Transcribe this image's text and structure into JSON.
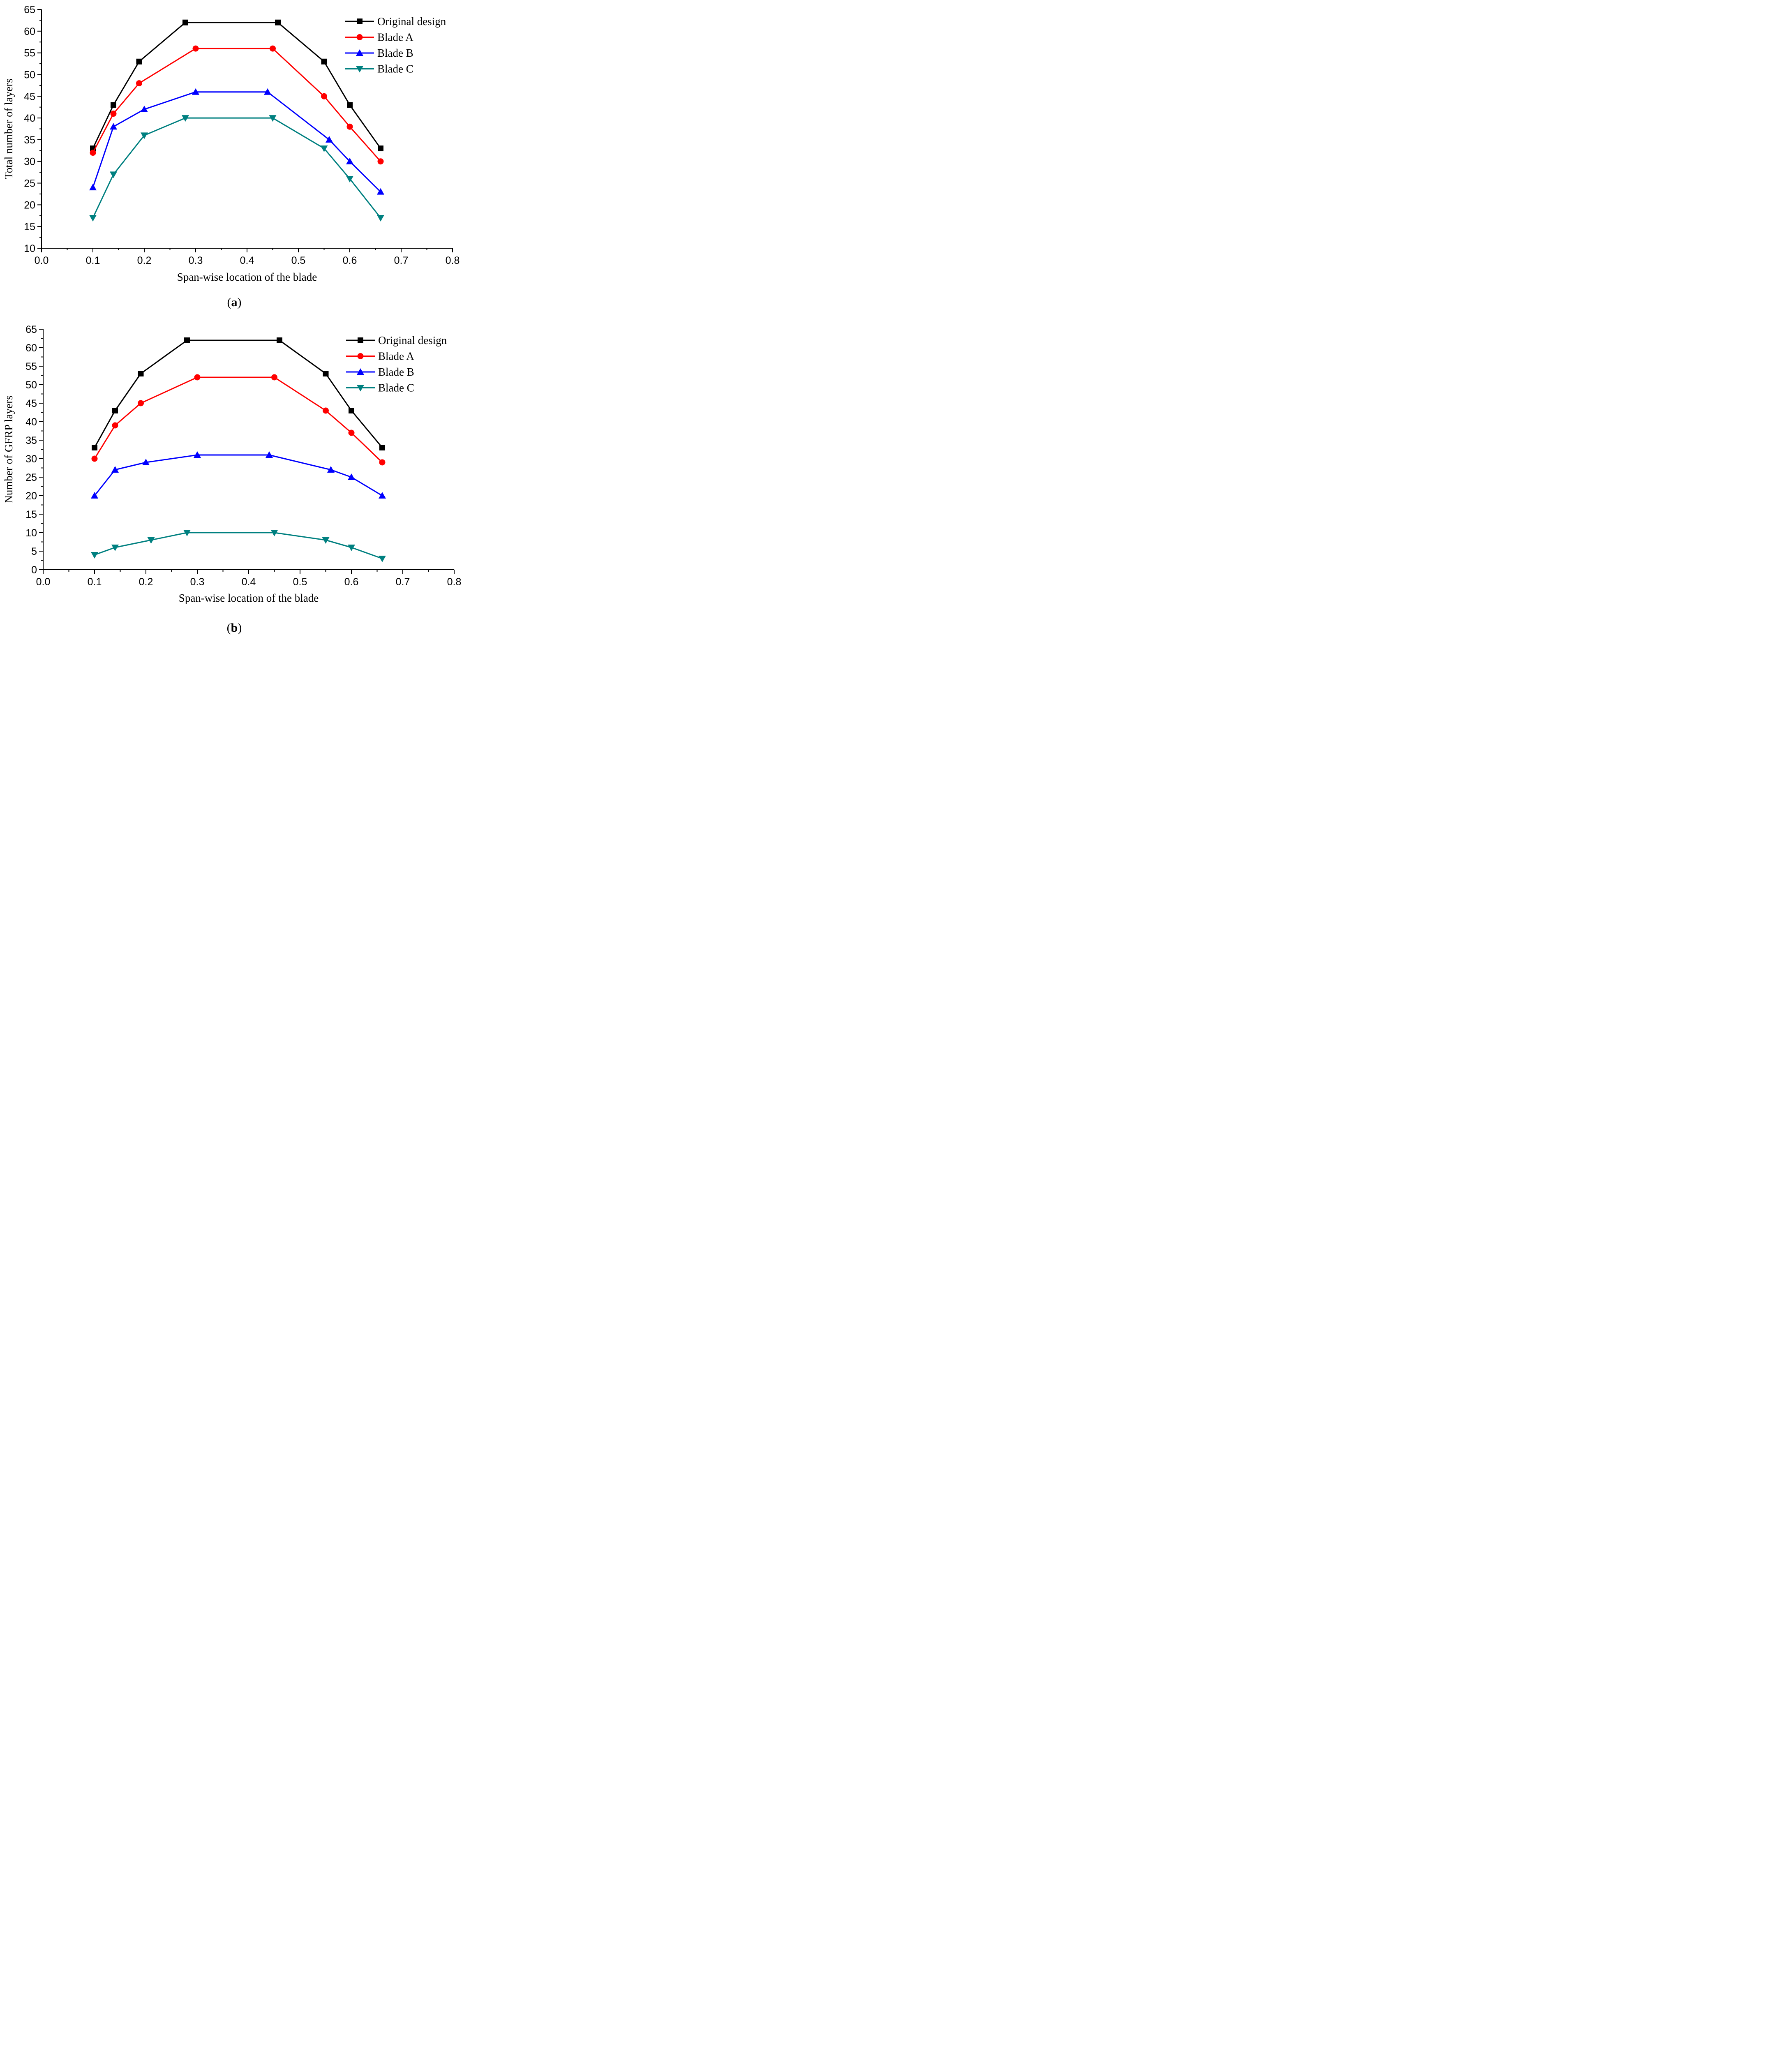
{
  "chart_data": [
    {
      "type": "line",
      "panel_label": "a",
      "title": "",
      "xlabel": "Span-wise location of the blade",
      "ylabel": "Total number of layers",
      "xlim": [
        0.0,
        0.8
      ],
      "ylim": [
        10,
        65
      ],
      "xticks": [
        "0.0",
        "0.1",
        "0.2",
        "0.3",
        "0.4",
        "0.5",
        "0.6",
        "0.7",
        "0.8"
      ],
      "yticks": [
        "10",
        "15",
        "20",
        "25",
        "30",
        "35",
        "40",
        "45",
        "50",
        "55",
        "60",
        "65"
      ],
      "grid": false,
      "legend_position": "top-right",
      "series": [
        {
          "name": "Original design",
          "color": "#000000",
          "marker": "square",
          "x": [
            0.1,
            0.14,
            0.19,
            0.28,
            0.46,
            0.55,
            0.6,
            0.66
          ],
          "y": [
            33,
            43,
            53,
            62,
            62,
            53,
            43,
            33
          ]
        },
        {
          "name": "Blade A",
          "color": "#ff0000",
          "marker": "circle",
          "x": [
            0.1,
            0.14,
            0.19,
            0.3,
            0.45,
            0.55,
            0.6,
            0.66
          ],
          "y": [
            32,
            41,
            48,
            56,
            56,
            45,
            38,
            30
          ]
        },
        {
          "name": "Blade B",
          "color": "#0000ff",
          "marker": "triangle-up",
          "x": [
            0.1,
            0.14,
            0.2,
            0.3,
            0.44,
            0.56,
            0.6,
            0.66
          ],
          "y": [
            24,
            38,
            42,
            46,
            46,
            35,
            30,
            23
          ]
        },
        {
          "name": "Blade C",
          "color": "#008080",
          "marker": "triangle-down",
          "x": [
            0.1,
            0.14,
            0.2,
            0.28,
            0.45,
            0.55,
            0.6,
            0.66
          ],
          "y": [
            17,
            27,
            36,
            40,
            40,
            33,
            26,
            17
          ]
        }
      ]
    },
    {
      "type": "line",
      "panel_label": "b",
      "title": "",
      "xlabel": "Span-wise location of the blade",
      "ylabel": "Number of GFRP layers",
      "xlim": [
        0.0,
        0.8
      ],
      "ylim": [
        0,
        65
      ],
      "xticks": [
        "0.0",
        "0.1",
        "0.2",
        "0.3",
        "0.4",
        "0.5",
        "0.6",
        "0.7",
        "0.8"
      ],
      "yticks": [
        "0",
        "5",
        "10",
        "15",
        "20",
        "25",
        "30",
        "35",
        "40",
        "45",
        "50",
        "55",
        "60",
        "65"
      ],
      "grid": false,
      "legend_position": "top-right",
      "series": [
        {
          "name": "Original design",
          "color": "#000000",
          "marker": "square",
          "x": [
            0.1,
            0.14,
            0.19,
            0.28,
            0.46,
            0.55,
            0.6,
            0.66
          ],
          "y": [
            33,
            43,
            53,
            62,
            62,
            53,
            43,
            33
          ]
        },
        {
          "name": "Blade A",
          "color": "#ff0000",
          "marker": "circle",
          "x": [
            0.1,
            0.14,
            0.19,
            0.3,
            0.45,
            0.55,
            0.6,
            0.66
          ],
          "y": [
            30,
            39,
            45,
            52,
            52,
            43,
            37,
            29
          ]
        },
        {
          "name": "Blade B",
          "color": "#0000ff",
          "marker": "triangle-up",
          "x": [
            0.1,
            0.14,
            0.2,
            0.3,
            0.44,
            0.56,
            0.6,
            0.66
          ],
          "y": [
            20,
            27,
            29,
            31,
            31,
            27,
            25,
            20
          ]
        },
        {
          "name": "Blade C",
          "color": "#008080",
          "marker": "triangle-down",
          "x": [
            0.1,
            0.14,
            0.21,
            0.28,
            0.45,
            0.55,
            0.6,
            0.66
          ],
          "y": [
            4,
            6,
            8,
            10,
            10,
            8,
            6,
            3
          ]
        }
      ]
    }
  ]
}
